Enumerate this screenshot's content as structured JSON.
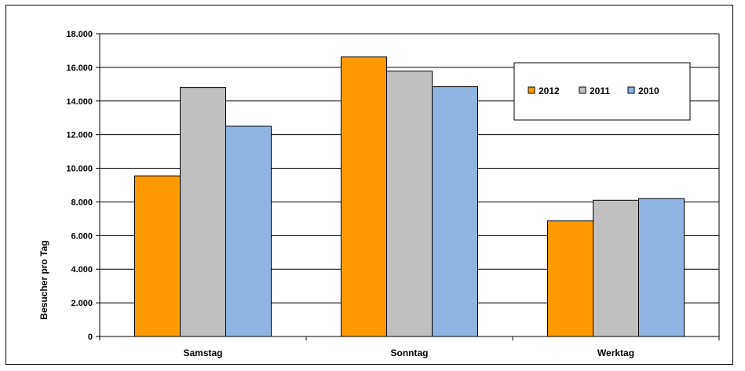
{
  "chart_data": {
    "type": "bar",
    "categories": [
      "Samstag",
      "Sonntag",
      "Werktag"
    ],
    "series": [
      {
        "name": "2012",
        "values": [
          9550,
          16620,
          6870
        ],
        "color": "#ff9900"
      },
      {
        "name": "2011",
        "values": [
          14800,
          15780,
          8100
        ],
        "color": "#c0c0c0"
      },
      {
        "name": "2010",
        "values": [
          12500,
          14850,
          8200
        ],
        "color": "#8eb4e3"
      }
    ],
    "title": "",
    "xlabel": "",
    "ylabel": "Besucher pro Tag",
    "ylim": [
      0,
      18000
    ],
    "yticks": [
      0,
      2000,
      4000,
      6000,
      8000,
      10000,
      12000,
      14000,
      16000,
      18000
    ],
    "ytick_labels": [
      "0",
      "2.000",
      "4.000",
      "6.000",
      "8.000",
      "10.000",
      "12.000",
      "14.000",
      "16.000",
      "18.000"
    ],
    "grid": true,
    "legend_position": "top-right"
  }
}
